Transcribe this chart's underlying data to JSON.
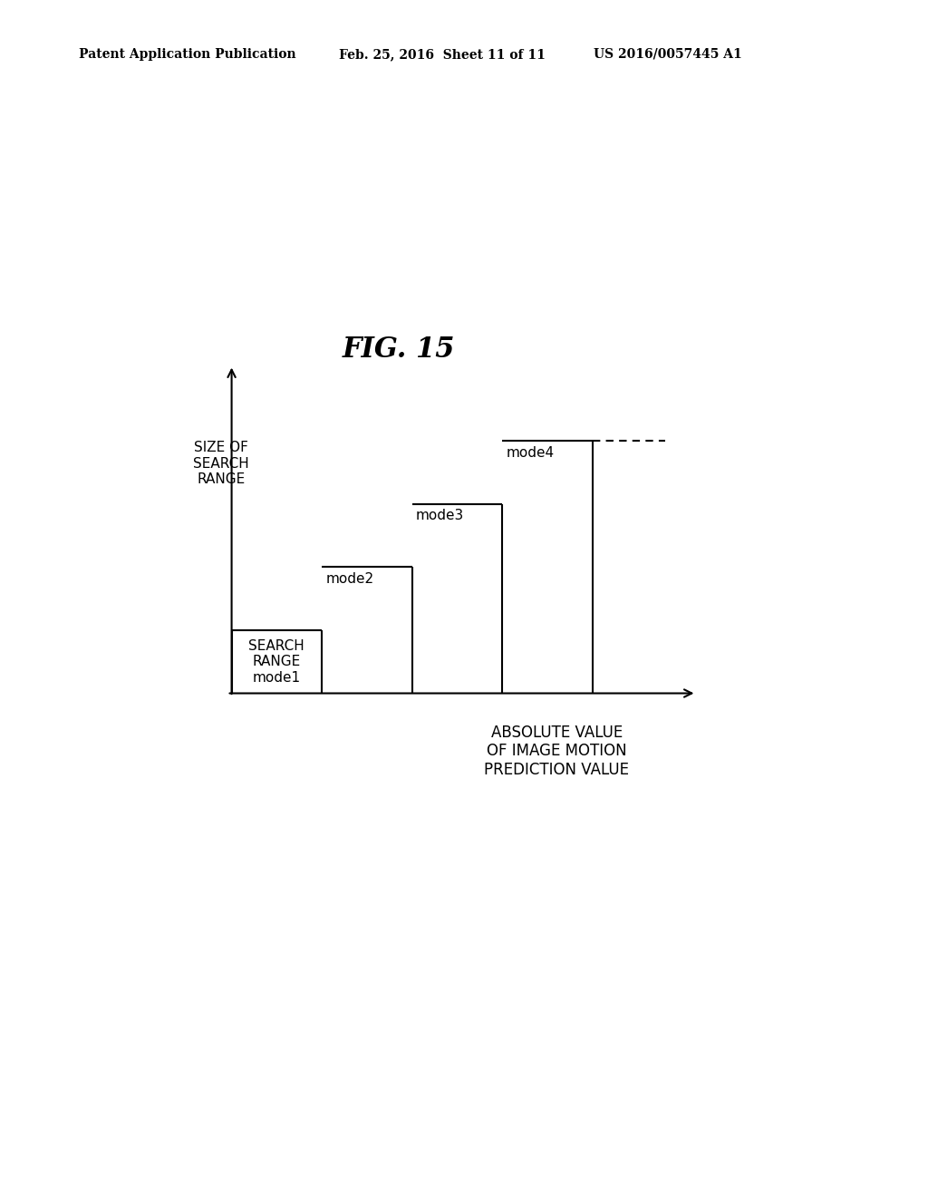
{
  "title": "FIG. 15",
  "header_left": "Patent Application Publication",
  "header_mid": "Feb. 25, 2016  Sheet 11 of 11",
  "header_right": "US 2016/0057445 A1",
  "ylabel": "SIZE OF\nSEARCH\nRANGE",
  "xlabel": "ABSOLUTE VALUE\nOF IMAGE MOTION\nPREDICTION VALUE",
  "background_color": "#ffffff",
  "steps": [
    {
      "x_start": 0.0,
      "x_end": 1.0,
      "y": 1.0
    },
    {
      "x_start": 1.0,
      "x_end": 2.0,
      "y": 2.0
    },
    {
      "x_start": 2.0,
      "x_end": 3.0,
      "y": 3.0
    },
    {
      "x_start": 3.0,
      "x_end": 4.0,
      "y": 4.0
    }
  ],
  "step_labels": [
    "SEARCH\nRANGE\nmode1",
    "mode2",
    "mode3",
    "mode4"
  ],
  "dots_x_start": 4.0,
  "dots_x_end": 4.8,
  "dots_y": 4.0,
  "xlim": [
    -0.15,
    5.3
  ],
  "ylim": [
    -0.3,
    5.2
  ],
  "label_fontsize": 11,
  "title_fontsize": 22,
  "header_fontsize": 10,
  "xlabel_fontsize": 12
}
